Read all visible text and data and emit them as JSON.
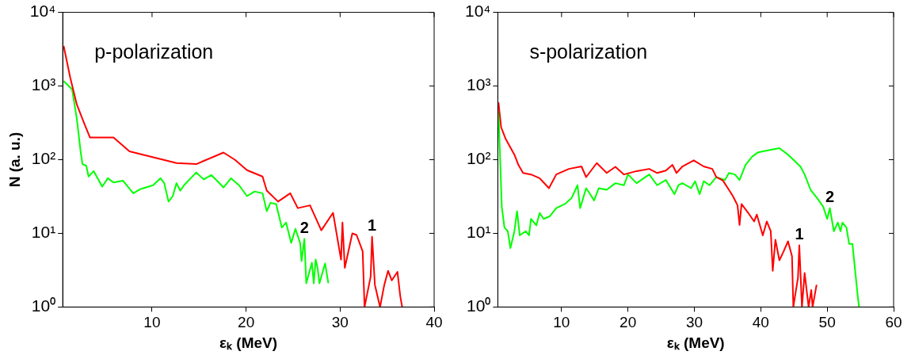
{
  "chart_data": [
    {
      "type": "line",
      "xlabel": "εₖ (MeV)",
      "ylabel": "N (a. u.)",
      "log": "y",
      "grid": false,
      "legend": false,
      "marker": "none",
      "line_style": "solid",
      "xlim": [
        0.5,
        40
      ],
      "xticks": [
        10,
        20,
        30,
        40
      ],
      "ylim": [
        1,
        10000
      ],
      "yticks": [
        {
          "value": 1,
          "label": "10⁰"
        },
        {
          "value": 10,
          "label": "10¹"
        },
        {
          "value": 100,
          "label": "10²"
        },
        {
          "value": 1000,
          "label": "10³"
        },
        {
          "value": 10000,
          "label": "10⁴"
        }
      ],
      "annotations": [
        "p-polarization"
      ],
      "series": [
        {
          "name": "1",
          "color": "#ff0000",
          "x": [
            0.6,
            1.3,
            2,
            2.75,
            3.4,
            5.9,
            7.6,
            12.6,
            14.7,
            17.6,
            18.8,
            20.1,
            21.75,
            22.2,
            23.4,
            24.7,
            25.5,
            26.8,
            28,
            29.25,
            30.1,
            30.25,
            30.5,
            31.3,
            31.75,
            32.4,
            32.6,
            33.25,
            33.4,
            33.7,
            34.25,
            34.7,
            35.1,
            35.5,
            36.1,
            36.4,
            36.6
          ],
          "values": [
            3500,
            1300,
            560,
            320,
            200,
            200,
            130,
            90,
            87,
            125,
            100,
            72,
            59,
            38,
            27,
            35,
            22,
            24,
            11,
            19,
            4.4,
            14,
            3.4,
            10,
            9.5,
            5.7,
            1,
            2.6,
            9,
            2,
            1,
            2,
            3.1,
            2.3,
            3,
            1.4,
            1
          ]
        },
        {
          "name": "2",
          "color": "#00ff00",
          "x": [
            0.6,
            1.5,
            2,
            2.4,
            2.6,
            3,
            3.25,
            3.8,
            4.7,
            5.3,
            5.9,
            6.9,
            8,
            8.8,
            10.1,
            10.9,
            11.3,
            11.75,
            12.2,
            12.6,
            13,
            13.4,
            14.7,
            15.5,
            16.3,
            17.6,
            18.4,
            19.25,
            20.1,
            20.9,
            21.75,
            22.2,
            22.6,
            23.2,
            23.8,
            24.25,
            24.8,
            25.25,
            25.75,
            25.9,
            26.2,
            26.4,
            27,
            27.2,
            27.4,
            27.6,
            27.8,
            28.4,
            28.75
          ],
          "values": [
            1170,
            900,
            360,
            130,
            87,
            83,
            59,
            70,
            43,
            56,
            49,
            52,
            35,
            40,
            45,
            56,
            48,
            27,
            32,
            48,
            38,
            45,
            67,
            54,
            62,
            42,
            56,
            45,
            32,
            37,
            35,
            20,
            26,
            25,
            12,
            14,
            7.4,
            11.5,
            7.4,
            4.2,
            8.4,
            2.1,
            4,
            2.1,
            4.4,
            3.4,
            2.1,
            3.9,
            2.1
          ]
        }
      ]
    },
    {
      "type": "line",
      "xlabel": "εₖ (MeV)",
      "log": "y",
      "grid": false,
      "legend": false,
      "marker": "none",
      "line_style": "solid",
      "xlim": [
        0.4,
        60
      ],
      "xticks": [
        10,
        20,
        30,
        40,
        50,
        60
      ],
      "ylim": [
        1,
        10000
      ],
      "yticks": [
        {
          "value": 1,
          "label": "10⁰"
        },
        {
          "value": 10,
          "label": "10¹"
        },
        {
          "value": 100,
          "label": "10²"
        },
        {
          "value": 1000,
          "label": "10³"
        },
        {
          "value": 10000,
          "label": "10⁴"
        }
      ],
      "annotations": [
        "s-polarization"
      ],
      "series": [
        {
          "name": "1",
          "color": "#ff0000",
          "x": [
            0.5,
            0.9,
            1.6,
            2.9,
            3.5,
            4.2,
            5.4,
            6.7,
            7.3,
            8.1,
            9.2,
            11.1,
            13,
            13.7,
            15.3,
            16.8,
            18.1,
            19.4,
            21.3,
            23.2,
            24.4,
            25.7,
            26.7,
            27.3,
            28.2,
            29.9,
            31.4,
            32.7,
            33.3,
            34.3,
            35.2,
            35.8,
            36.5,
            36.8,
            37.1,
            38.1,
            39,
            39.4,
            40.3,
            40.9,
            41.5,
            41.8,
            42.2,
            42.8,
            43.4,
            44.1,
            44.7,
            44.9,
            45.6,
            45.8,
            46.2,
            46.6,
            47.2,
            47.6,
            47.8,
            48.4
          ],
          "values": [
            600,
            275,
            190,
            117,
            85,
            66,
            63,
            56,
            49,
            41,
            63,
            75,
            81,
            58,
            90,
            66,
            80,
            63,
            70,
            75,
            66,
            71,
            85,
            66,
            81,
            98,
            81,
            75,
            58,
            52,
            39,
            32,
            24,
            13,
            25,
            19,
            14.5,
            18,
            9.4,
            14.5,
            10.7,
            3.1,
            8.2,
            4.3,
            5.6,
            7.8,
            4.9,
            1,
            2.5,
            6.9,
            1,
            2.9,
            1,
            1.7,
            1,
            2
          ]
        },
        {
          "name": "2",
          "color": "#00ff00",
          "x": [
            0.5,
            1,
            1.4,
            1.9,
            2.3,
            2.9,
            3.3,
            3.7,
            4.6,
            5.1,
            5.4,
            6.2,
            6.7,
            7.3,
            8.2,
            9.2,
            10.5,
            11.5,
            12.4,
            12.8,
            13.7,
            14.3,
            14.9,
            15.6,
            16.8,
            18.1,
            19.4,
            20,
            21.3,
            23.2,
            24.4,
            25.7,
            27,
            27.6,
            28.2,
            29.5,
            30.1,
            30.8,
            31.4,
            32.3,
            33.3,
            34.6,
            35.2,
            36.1,
            36.8,
            37.7,
            38.7,
            39.6,
            41.5,
            42.8,
            44.1,
            45,
            46,
            46.6,
            47.5,
            48.5,
            49.4,
            50,
            50.4,
            51,
            51.6,
            52,
            52.3,
            52.9,
            53.3,
            53.8,
            54.6,
            54.8
          ],
          "values": [
            460,
            23,
            12,
            10.7,
            6.3,
            10.7,
            20,
            9.4,
            10.7,
            9.4,
            15.7,
            12.8,
            18.9,
            15.7,
            17,
            22,
            25,
            30,
            45,
            22,
            41,
            34,
            28,
            41,
            39,
            48,
            45,
            63,
            48,
            63,
            45,
            53,
            34,
            45,
            48,
            41,
            51,
            34,
            51,
            45,
            58,
            53,
            66,
            63,
            53,
            85,
            110,
            126,
            136,
            143,
            117,
            98,
            80,
            63,
            39,
            30,
            23,
            15.7,
            22,
            10.7,
            14,
            10.7,
            14,
            12,
            7.2,
            7.2,
            1.4,
            1
          ]
        }
      ]
    }
  ]
}
